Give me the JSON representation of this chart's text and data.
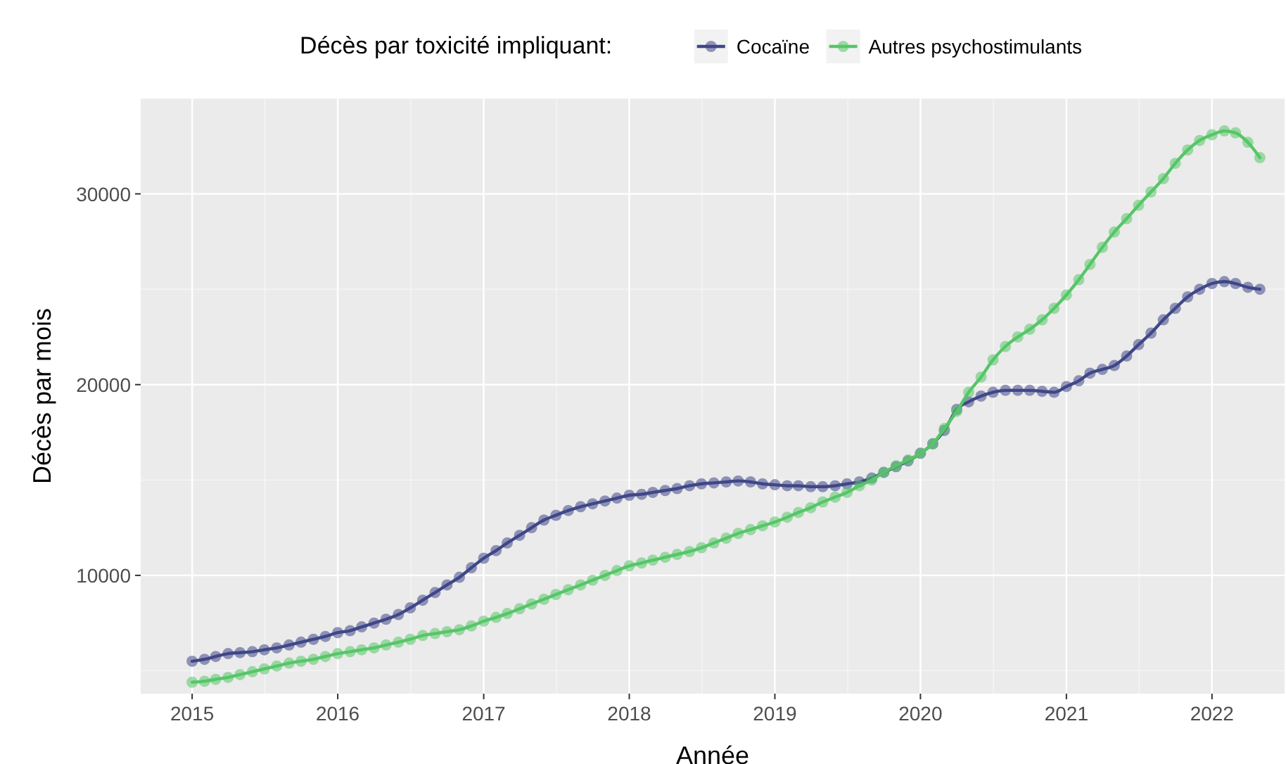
{
  "chart_data": {
    "type": "line",
    "xlabel": "Année",
    "ylabel": "Décès par mois",
    "legend_title": "Décès par toxicité impliquant:",
    "legend": "top",
    "grid": true,
    "marker": "circle",
    "line_style": "solid",
    "xlim": [
      "2014-08-25",
      "2022-07-02"
    ],
    "xticks": [
      "2015",
      "2016",
      "2017",
      "2018",
      "2019",
      "2020",
      "2021",
      "2022"
    ],
    "ylim": [
      3800,
      35000
    ],
    "yticks": [
      10000,
      20000,
      30000
    ],
    "x": [
      "2015-01",
      "2015-02",
      "2015-03",
      "2015-04",
      "2015-05",
      "2015-06",
      "2015-07",
      "2015-08",
      "2015-09",
      "2015-10",
      "2015-11",
      "2015-12",
      "2016-01",
      "2016-02",
      "2016-03",
      "2016-04",
      "2016-05",
      "2016-06",
      "2016-07",
      "2016-08",
      "2016-09",
      "2016-10",
      "2016-11",
      "2016-12",
      "2017-01",
      "2017-02",
      "2017-03",
      "2017-04",
      "2017-05",
      "2017-06",
      "2017-07",
      "2017-08",
      "2017-09",
      "2017-10",
      "2017-11",
      "2017-12",
      "2018-01",
      "2018-02",
      "2018-03",
      "2018-04",
      "2018-05",
      "2018-06",
      "2018-07",
      "2018-08",
      "2018-09",
      "2018-10",
      "2018-11",
      "2018-12",
      "2019-01",
      "2019-02",
      "2019-03",
      "2019-04",
      "2019-05",
      "2019-06",
      "2019-07",
      "2019-08",
      "2019-09",
      "2019-10",
      "2019-11",
      "2019-12",
      "2020-01",
      "2020-02",
      "2020-03",
      "2020-04",
      "2020-05",
      "2020-06",
      "2020-07",
      "2020-08",
      "2020-09",
      "2020-10",
      "2020-11",
      "2020-12",
      "2021-01",
      "2021-02",
      "2021-03",
      "2021-04",
      "2021-05",
      "2021-06",
      "2021-07",
      "2021-08",
      "2021-09",
      "2021-10",
      "2021-11",
      "2021-12",
      "2022-01",
      "2022-02",
      "2022-03",
      "2022-04",
      "2022-05"
    ],
    "series": [
      {
        "name": "Cocaïne",
        "color": "#404788",
        "values": [
          5500,
          5600,
          5750,
          5900,
          5950,
          6000,
          6100,
          6200,
          6350,
          6500,
          6650,
          6800,
          7000,
          7100,
          7300,
          7500,
          7700,
          7950,
          8300,
          8700,
          9100,
          9500,
          9900,
          10400,
          10900,
          11300,
          11700,
          12100,
          12500,
          12900,
          13150,
          13400,
          13600,
          13750,
          13900,
          14050,
          14200,
          14250,
          14350,
          14450,
          14550,
          14700,
          14800,
          14850,
          14900,
          14950,
          14900,
          14800,
          14750,
          14700,
          14700,
          14650,
          14650,
          14700,
          14800,
          14900,
          15100,
          15400,
          15700,
          16000,
          16400,
          16900,
          17600,
          18700,
          19100,
          19400,
          19600,
          19700,
          19700,
          19700,
          19650,
          19600,
          19900,
          20200,
          20600,
          20800,
          21000,
          21500,
          22100,
          22700,
          23400,
          24000,
          24600,
          25000,
          25300,
          25400,
          25300,
          25100,
          25000
        ]
      },
      {
        "name": "Autres psychostimulants",
        "color": "#55c667",
        "values": [
          4400,
          4450,
          4550,
          4650,
          4800,
          4950,
          5100,
          5250,
          5400,
          5500,
          5600,
          5750,
          5900,
          6000,
          6100,
          6200,
          6350,
          6500,
          6650,
          6850,
          6950,
          7050,
          7150,
          7350,
          7600,
          7800,
          8000,
          8250,
          8500,
          8750,
          9000,
          9250,
          9500,
          9750,
          10000,
          10250,
          10500,
          10650,
          10800,
          10950,
          11100,
          11250,
          11450,
          11700,
          11950,
          12200,
          12400,
          12600,
          12800,
          13050,
          13300,
          13550,
          13850,
          14100,
          14350,
          14700,
          15000,
          15400,
          15750,
          16050,
          16400,
          16900,
          17700,
          18600,
          19600,
          20400,
          21300,
          22000,
          22500,
          22900,
          23400,
          24000,
          24700,
          25500,
          26300,
          27200,
          28000,
          28700,
          29400,
          30100,
          30800,
          31600,
          32300,
          32800,
          33100,
          33300,
          33200,
          32700,
          31900
        ]
      }
    ]
  }
}
